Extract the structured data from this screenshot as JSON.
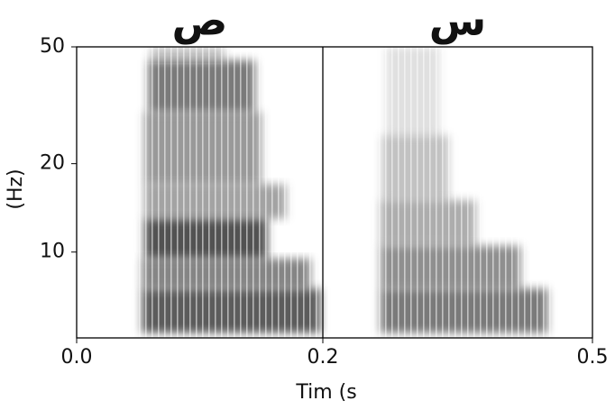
{
  "chart_data": {
    "type": "spectrogram",
    "xlabel": "Tim (s",
    "ylabel": "(Hz)",
    "ylim": [
      5.1,
      50
    ],
    "yscale": "log",
    "yticks": [
      10,
      20,
      50
    ],
    "xticks": [
      {
        "value": 0,
        "label": "0.0"
      },
      {
        "value": 0.2,
        "label": "0.2"
      },
      {
        "value": 0.5,
        "label": "0.5"
      }
    ],
    "color": "#000000",
    "panels": [
      {
        "title": "ص",
        "xlim": [
          0,
          0.2
        ],
        "cells": [
          {
            "t": [
              0.053,
              0.198
            ],
            "f": [
              5.3,
              7.5
            ],
            "level": 0.8
          },
          {
            "t": [
              0.053,
              0.19
            ],
            "f": [
              7.5,
              9.5
            ],
            "level": 0.6
          },
          {
            "t": [
              0.055,
              0.155
            ],
            "f": [
              9.5,
              13
            ],
            "level": 0.85
          },
          {
            "t": [
              0.055,
              0.17
            ],
            "f": [
              13,
              17
            ],
            "level": 0.45
          },
          {
            "t": [
              0.055,
              0.15
            ],
            "f": [
              17,
              30
            ],
            "level": 0.5
          },
          {
            "t": [
              0.058,
              0.145
            ],
            "f": [
              30,
              45
            ],
            "level": 0.65
          },
          {
            "t": [
              0.06,
              0.12
            ],
            "f": [
              45,
              50
            ],
            "level": 0.3
          }
        ]
      },
      {
        "title": "س",
        "xlim": [
          0.2,
          0.5
        ],
        "cells": [
          {
            "t": [
              0.264,
              0.45
            ],
            "f": [
              5.3,
              7.5
            ],
            "level": 0.65
          },
          {
            "t": [
              0.264,
              0.42
            ],
            "f": [
              7.5,
              10.5
            ],
            "level": 0.55
          },
          {
            "t": [
              0.264,
              0.37
            ],
            "f": [
              10.5,
              15
            ],
            "level": 0.4
          },
          {
            "t": [
              0.266,
              0.34
            ],
            "f": [
              15,
              25
            ],
            "level": 0.3
          },
          {
            "t": [
              0.27,
              0.33
            ],
            "f": [
              25,
              50
            ],
            "level": 0.15
          }
        ]
      }
    ]
  }
}
